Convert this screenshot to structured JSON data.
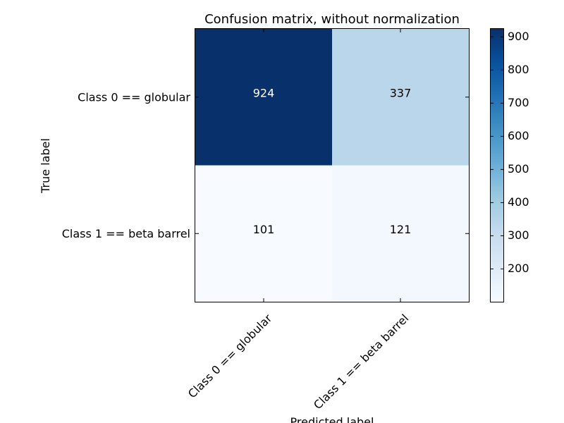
{
  "chart_data": {
    "type": "heatmap",
    "title": "Confusion matrix, without normalization",
    "xlabel": "Predicted label",
    "ylabel": "True label",
    "x_categories": [
      "Class 0 == globular",
      "Class 1 == beta barrel"
    ],
    "y_categories": [
      "Class 0 == globular",
      "Class 1 == beta barrel"
    ],
    "matrix": [
      [
        924,
        337
      ],
      [
        101,
        121
      ]
    ],
    "colormap": "Blues",
    "value_range": [
      101,
      924
    ],
    "colorbar": {
      "ticks": [
        200,
        300,
        400,
        500,
        600,
        700,
        800,
        900
      ],
      "tick_labels": [
        "200",
        "300",
        "400",
        "500",
        "600",
        "700",
        "800",
        "900"
      ]
    },
    "cell_text_colors": {
      "dark_cell": "#ffffff",
      "light_cell": "#000000"
    },
    "grid": false
  }
}
